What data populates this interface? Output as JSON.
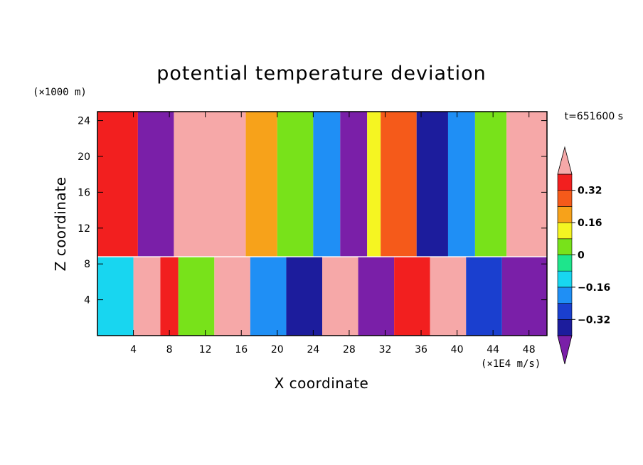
{
  "chart_data": {
    "type": "heatmap",
    "title": "potential temperature deviation",
    "xlabel": "X coordinate",
    "ylabel": "Z coordinate",
    "x_unit": "(×1E4 m/s)",
    "y_unit": "(×1000 m)",
    "time_label": "t=651600 s",
    "xlim": [
      0,
      50
    ],
    "ylim": [
      0,
      25
    ],
    "x_ticks": [
      4,
      8,
      12,
      16,
      20,
      24,
      28,
      32,
      36,
      40,
      44,
      48
    ],
    "y_ticks": [
      4,
      8,
      12,
      16,
      20,
      24
    ],
    "colorbar": {
      "levels": [
        -0.4,
        -0.32,
        -0.24,
        -0.16,
        -0.08,
        0,
        0.08,
        0.16,
        0.24,
        0.32,
        0.4
      ],
      "labels": [
        "0.32",
        "0.16",
        "0",
        "−0.16",
        "−0.32"
      ],
      "label_values": [
        0.32,
        0.16,
        0,
        -0.16,
        -0.32
      ],
      "colors": [
        "#7a1fa8",
        "#1c1c9c",
        "#1a3fcf",
        "#1f8ff5",
        "#18d6f0",
        "#1ee58c",
        "#78e21a",
        "#f5f522",
        "#f7a21a",
        "#f55a1a",
        "#f21f1f",
        "#f6a8a8"
      ],
      "extend": "both"
    },
    "upper_bands": [
      {
        "x0": 0,
        "x1": 4.5,
        "value": 0.36
      },
      {
        "x0": 4.5,
        "x1": 8.5,
        "value": -0.42
      },
      {
        "x0": 8.5,
        "x1": 16.5,
        "value": 0.42
      },
      {
        "x0": 16.5,
        "x1": 20,
        "value": 0.2
      },
      {
        "x0": 20,
        "x1": 24,
        "value": 0.05
      },
      {
        "x0": 24,
        "x1": 27,
        "value": -0.2
      },
      {
        "x0": 27,
        "x1": 30,
        "value": -0.42
      },
      {
        "x0": 30,
        "x1": 31.5,
        "value": 0.1
      },
      {
        "x0": 31.5,
        "x1": 35.5,
        "value": 0.24
      },
      {
        "x0": 35.5,
        "x1": 39,
        "value": -0.36
      },
      {
        "x0": 39,
        "x1": 42,
        "value": -0.24
      },
      {
        "x0": 42,
        "x1": 45.5,
        "value": 0.0
      },
      {
        "x0": 45.5,
        "x1": 50,
        "value": 0.42
      }
    ],
    "lower_patches": [
      {
        "x0": 0,
        "x1": 4,
        "value": -0.1
      },
      {
        "x0": 4,
        "x1": 7,
        "value": 0.42
      },
      {
        "x0": 7,
        "x1": 9,
        "value": 0.36
      },
      {
        "x0": 9,
        "x1": 13,
        "value": 0.0
      },
      {
        "x0": 13,
        "x1": 17,
        "value": 0.42
      },
      {
        "x0": 17,
        "x1": 21,
        "value": -0.2
      },
      {
        "x0": 21,
        "x1": 25,
        "value": -0.36
      },
      {
        "x0": 25,
        "x1": 29,
        "value": 0.42
      },
      {
        "x0": 29,
        "x1": 33,
        "value": -0.42
      },
      {
        "x0": 33,
        "x1": 37,
        "value": 0.36
      },
      {
        "x0": 37,
        "x1": 41,
        "value": 0.42
      },
      {
        "x0": 41,
        "x1": 45,
        "value": -0.28
      },
      {
        "x0": 45,
        "x1": 50,
        "value": -0.42
      }
    ],
    "interface_z": 8.8
  }
}
